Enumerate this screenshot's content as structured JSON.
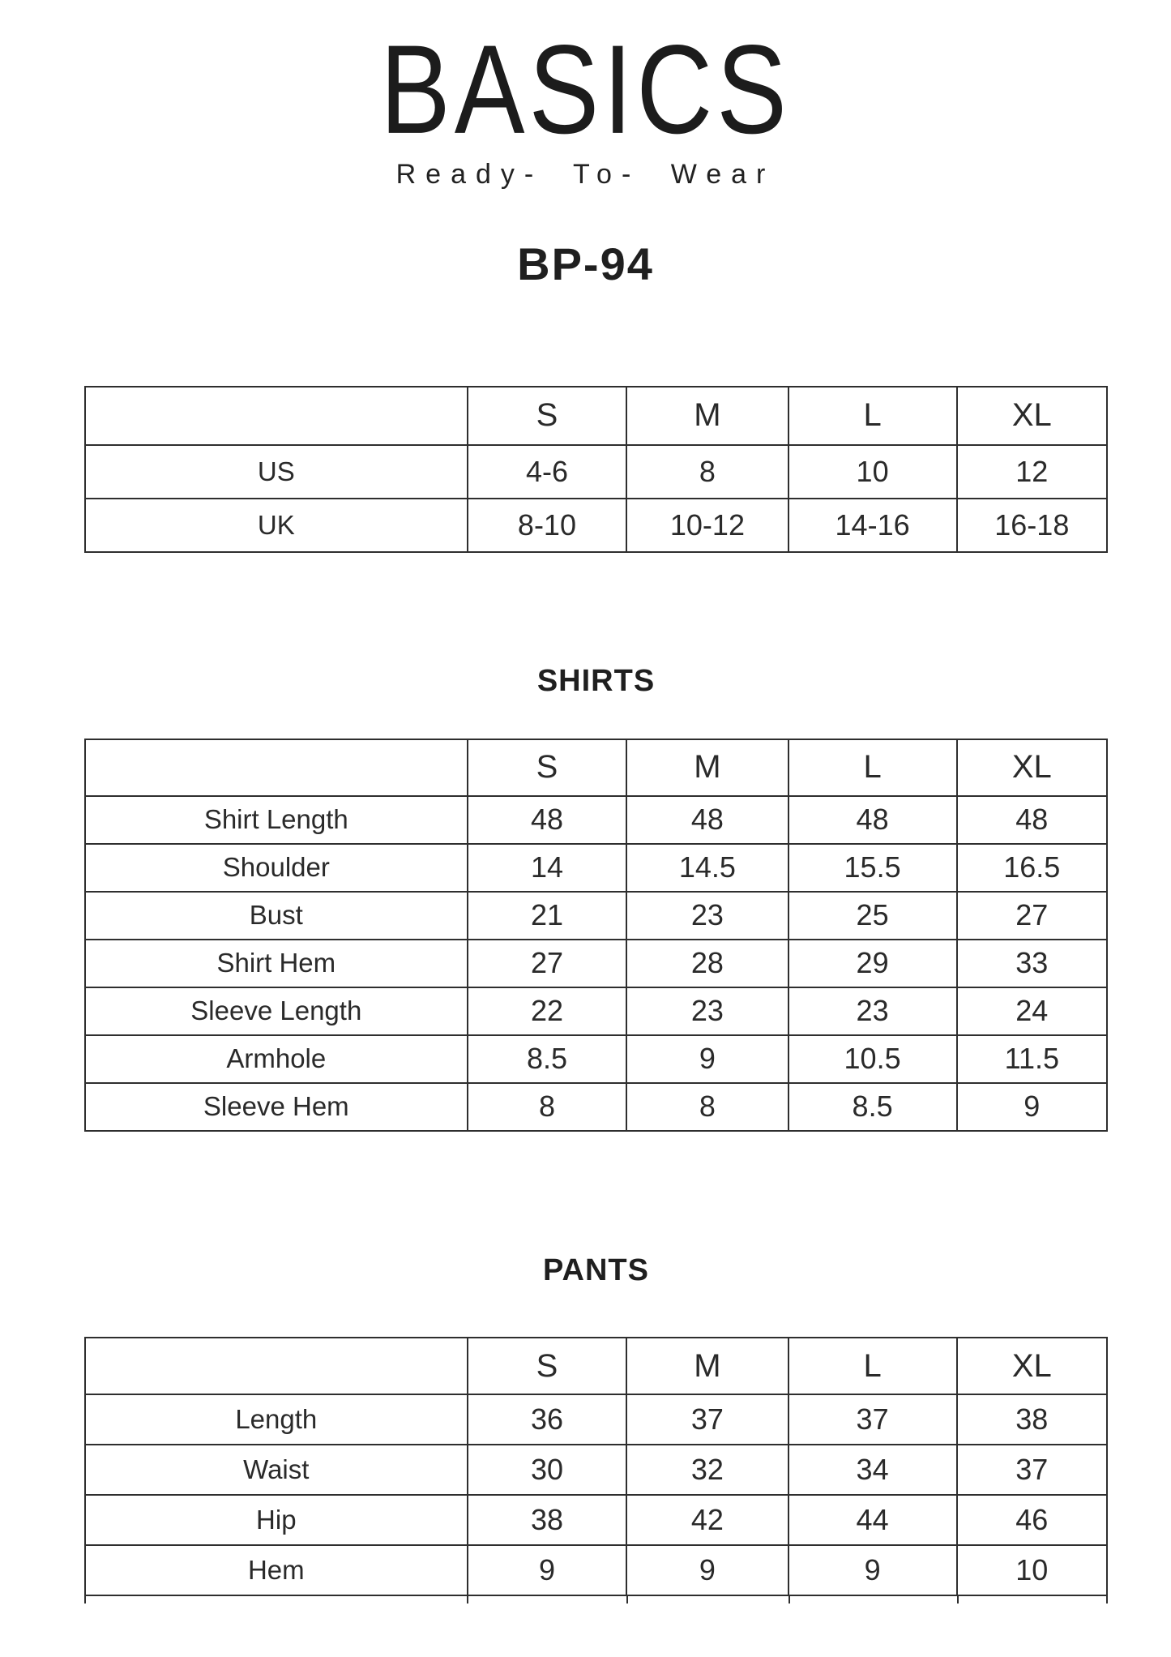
{
  "colors": {
    "background": "#ffffff",
    "text": "#272727",
    "border": "#2e2e2e"
  },
  "brand": {
    "logo": "BASICS",
    "tagline": "Ready- To- Wear",
    "product_code": "BP-94"
  },
  "sizes": [
    "S",
    "M",
    "L",
    "XL"
  ],
  "size_conversion": {
    "rows": [
      {
        "label": "US",
        "values": [
          "4-6",
          "8",
          "10",
          "12"
        ]
      },
      {
        "label": "UK",
        "values": [
          "8-10",
          "10-12",
          "14-16",
          "16-18"
        ]
      }
    ]
  },
  "shirts": {
    "title": "SHIRTS",
    "rows": [
      {
        "label": "Shirt Length",
        "values": [
          "48",
          "48",
          "48",
          "48"
        ]
      },
      {
        "label": "Shoulder",
        "values": [
          "14",
          "14.5",
          "15.5",
          "16.5"
        ]
      },
      {
        "label": "Bust",
        "values": [
          "21",
          "23",
          "25",
          "27"
        ]
      },
      {
        "label": "Shirt Hem",
        "values": [
          "27",
          "28",
          "29",
          "33"
        ]
      },
      {
        "label": "Sleeve Length",
        "values": [
          "22",
          "23",
          "23",
          "24"
        ]
      },
      {
        "label": "Armhole",
        "values": [
          "8.5",
          "9",
          "10.5",
          "11.5"
        ]
      },
      {
        "label": "Sleeve Hem",
        "values": [
          "8",
          "8",
          "8.5",
          "9"
        ]
      }
    ]
  },
  "pants": {
    "title": "PANTS",
    "rows": [
      {
        "label": "Length",
        "values": [
          "36",
          "37",
          "37",
          "38"
        ]
      },
      {
        "label": "Waist",
        "values": [
          "30",
          "32",
          "34",
          "37"
        ]
      },
      {
        "label": "Hip",
        "values": [
          "38",
          "42",
          "44",
          "46"
        ]
      },
      {
        "label": "Hem",
        "values": [
          "9",
          "9",
          "9",
          "10"
        ]
      }
    ]
  }
}
